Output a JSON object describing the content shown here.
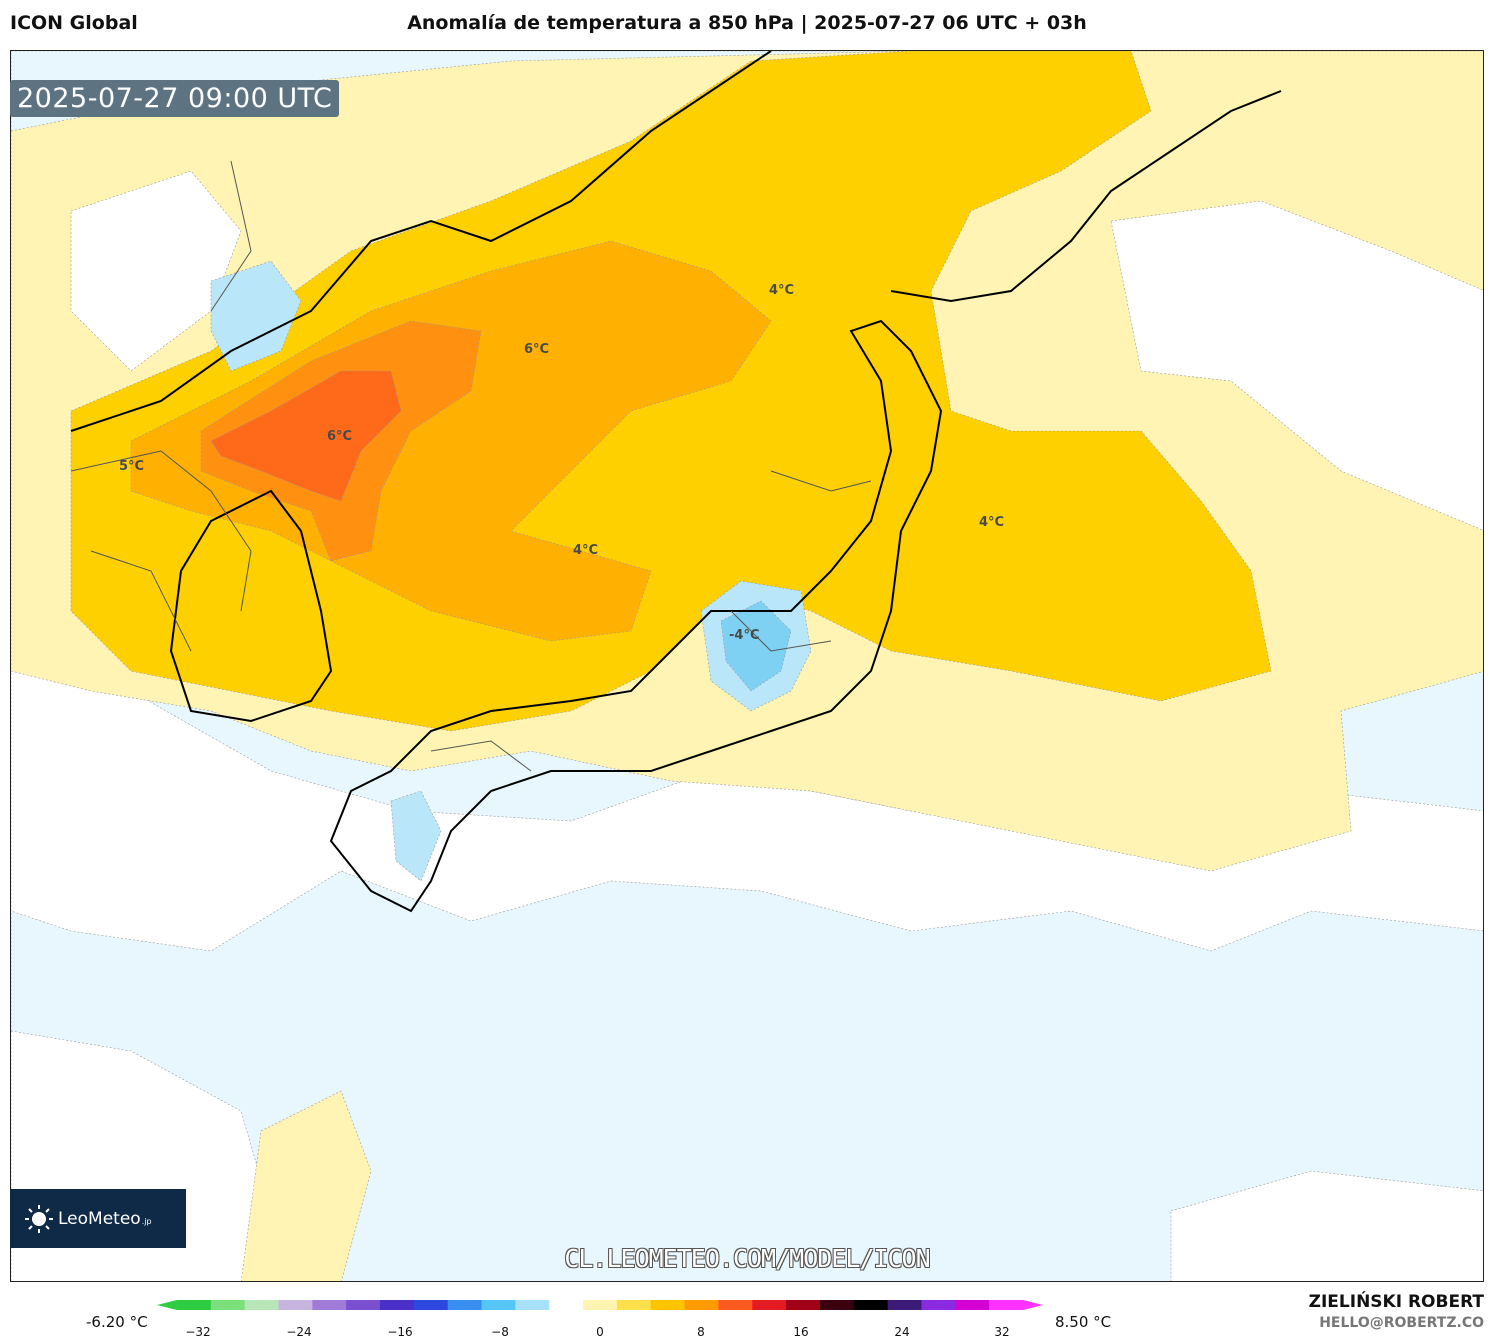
{
  "header": {
    "model": "ICON Global",
    "title": "Anomalía de temperatura a 850 hPa | 2025-07-27 06 UTC + 03h"
  },
  "timestamp": "2025-07-27 09:00 UTC",
  "contour_labels": [
    "4°C",
    "6°C",
    "6°C",
    "5°C",
    "4°C",
    "4°C",
    "-4°C"
  ],
  "branding": {
    "logo_text": "LeoMeteo",
    "logo_tld": ".jp",
    "watermark_url": "CL.LEOMETEO.COM/MODEL/ICON",
    "author": "ZIELIŃSKI ROBERT",
    "email": "HELLO@ROBERTZ.CO"
  },
  "colorbar": {
    "min_label": "-6.20 °C",
    "max_label": "8.50 °C",
    "ticks": [
      "−32",
      "−24",
      "−16",
      "−8",
      "0",
      "8",
      "16",
      "24",
      "32"
    ],
    "colors": [
      "#2ecc40",
      "#7be07b",
      "#b8e6b8",
      "#c8b4e0",
      "#a07bd8",
      "#7a4fd0",
      "#4a2fc8",
      "#2c48e0",
      "#3a8ef0",
      "#55c6f5",
      "#a8e2fa",
      "#ffffff",
      "#fff5b0",
      "#ffe04a",
      "#ffc400",
      "#ff9a00",
      "#ff5a1f",
      "#e31b23",
      "#a00018",
      "#3a0010",
      "#000000",
      "#3b1a78",
      "#8a2be2",
      "#d400d4",
      "#ff33ff"
    ]
  },
  "map_palette": {
    "cold_light": "#e8f6fd",
    "cold_mid": "#b9e6f8",
    "cold_strong": "#7fd1f3",
    "cold_core": "#4cc0ee",
    "neutral": "#ffffff",
    "warm_light": "#fff4b3",
    "warm": "#ffe060",
    "warm_mid": "#ffd000",
    "hot": "#ffb000",
    "hotter": "#ff9010",
    "hottest": "#ff6a1a",
    "land_border": "#555555",
    "coast": "#000000"
  }
}
